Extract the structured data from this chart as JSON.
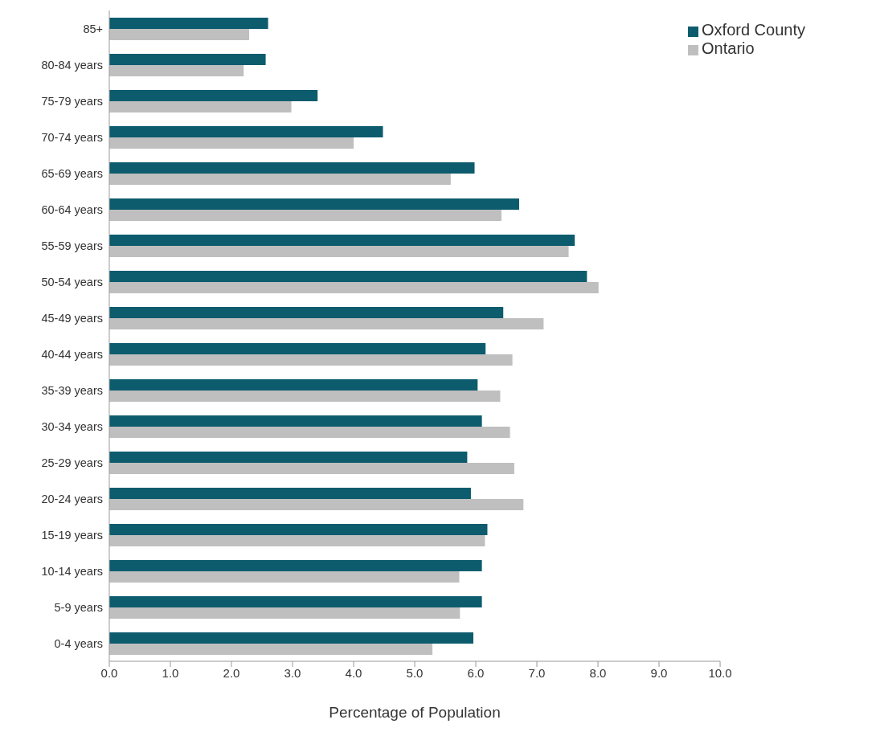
{
  "chart_data": {
    "type": "bar",
    "orientation": "horizontal",
    "xlabel": "Percentage of Population",
    "categories": [
      "85+",
      "80-84 years",
      "75-79 years",
      "70-74 years",
      "65-69 years",
      "60-64 years",
      "55-59 years",
      "50-54 years",
      "45-49 years",
      "40-44 years",
      "35-39 years",
      "30-34 years",
      "25-29 years",
      "20-24 years",
      "15-19 years",
      "10-14 years",
      "5-9 years",
      "0-4 years"
    ],
    "series": [
      {
        "name": "Oxford County",
        "color": "#0d5c6e",
        "values": [
          2.6,
          2.56,
          3.41,
          4.48,
          5.98,
          6.71,
          7.62,
          7.82,
          6.45,
          6.16,
          6.03,
          6.1,
          5.86,
          5.92,
          6.19,
          6.1,
          6.1,
          5.96
        ]
      },
      {
        "name": "Ontario",
        "color": "#bfbfbf",
        "values": [
          2.29,
          2.2,
          2.98,
          4.0,
          5.59,
          6.42,
          7.52,
          8.01,
          7.11,
          6.6,
          6.4,
          6.56,
          6.63,
          6.78,
          6.15,
          5.73,
          5.74,
          5.29
        ]
      }
    ],
    "xlim": [
      0,
      10
    ],
    "xticks": [
      {
        "value": 0,
        "label": "0.0"
      },
      {
        "value": 1,
        "label": "1.0"
      },
      {
        "value": 2,
        "label": "2.0"
      },
      {
        "value": 3,
        "label": "3.0"
      },
      {
        "value": 4,
        "label": "4.0"
      },
      {
        "value": 5,
        "label": "5.0"
      },
      {
        "value": 6,
        "label": "6.0"
      },
      {
        "value": 7,
        "label": "7.0"
      },
      {
        "value": 8,
        "label": "8.0"
      },
      {
        "value": 9,
        "label": "9.0"
      },
      {
        "value": 10,
        "label": "10.0"
      }
    ],
    "grid": false,
    "legend": "top right"
  }
}
